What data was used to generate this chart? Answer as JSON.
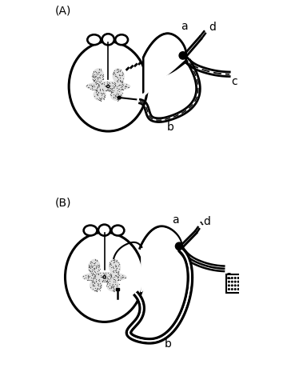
{
  "title_A": "(A)",
  "title_B": "(B)",
  "label_a": "a",
  "label_b": "b",
  "label_c": "c",
  "label_d": "d",
  "bg_color": "#ffffff",
  "lw_outer": 2.2,
  "lw_nerve": 2.5,
  "lw_thin": 1.5,
  "stipple_color": "#888888",
  "black": "#000000"
}
